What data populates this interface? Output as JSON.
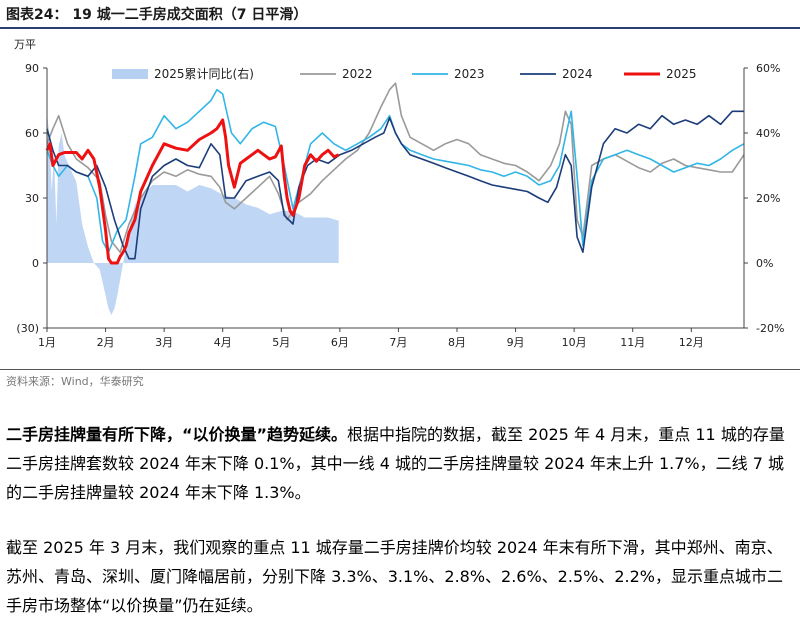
{
  "figure": {
    "title": "图表24：  19 城一二手房成交面积（7 日平滑）",
    "source": "资料来源：Wind，华泰研究"
  },
  "chart_data": {
    "type": "line",
    "y_unit": "万平",
    "ylim": [
      -30,
      90
    ],
    "yticks": [
      "90",
      "60",
      "30",
      "0",
      "(30)"
    ],
    "y2lim": [
      -20,
      60
    ],
    "y2ticks": [
      "60%",
      "40%",
      "20%",
      "0%",
      "-20%"
    ],
    "months": [
      "1月",
      "2月",
      "3月",
      "4月",
      "5月",
      "6月",
      "7月",
      "8月",
      "9月",
      "10月",
      "11月",
      "12月"
    ],
    "grid": false,
    "legend_position": "top",
    "series": [
      {
        "name": "2025累计同比(右)",
        "type": "area",
        "axis": "right",
        "color": "#a9c8f0",
        "x": [
          1.0,
          1.04,
          1.08,
          1.12,
          1.16,
          1.2,
          1.25,
          1.3,
          1.4,
          1.5,
          1.6,
          1.7,
          1.8,
          1.9,
          2.0,
          2.05,
          2.1,
          2.15,
          2.2,
          2.25,
          2.3,
          2.4,
          2.5,
          2.6,
          2.7,
          2.8,
          3.0,
          3.2,
          3.4,
          3.6,
          3.8,
          4.0,
          4.2,
          4.4,
          4.6,
          4.8,
          5.0,
          5.2,
          5.4,
          5.6,
          5.8,
          5.98
        ],
        "values": [
          46,
          40,
          22,
          33,
          12,
          36,
          40,
          33,
          29,
          25,
          12,
          5,
          0,
          -2,
          -10,
          -14,
          -16,
          -14,
          -10,
          -5,
          0,
          10,
          18,
          20,
          22,
          24,
          24,
          24,
          22,
          24,
          23,
          21,
          20,
          18,
          17,
          15,
          16,
          16,
          14,
          14,
          14,
          13
        ]
      },
      {
        "name": "2022",
        "color": "#9a9a9a",
        "x": [
          1.0,
          1.1,
          1.2,
          1.35,
          1.5,
          1.7,
          1.9,
          2.0,
          2.1,
          2.25,
          2.4,
          2.6,
          2.8,
          3.0,
          3.2,
          3.4,
          3.6,
          3.8,
          3.95,
          4.05,
          4.2,
          4.4,
          4.6,
          4.8,
          4.95,
          5.1,
          5.3,
          5.5,
          5.7,
          5.9,
          6.1,
          6.3,
          6.5,
          6.7,
          6.85,
          6.95,
          7.05,
          7.2,
          7.4,
          7.6,
          7.8,
          8.0,
          8.2,
          8.4,
          8.6,
          8.8,
          9.0,
          9.2,
          9.4,
          9.6,
          9.75,
          9.85,
          9.95,
          10.05,
          10.15,
          10.3,
          10.5,
          10.7,
          10.9,
          11.1,
          11.3,
          11.5,
          11.7,
          11.9,
          12.1,
          12.3,
          12.5,
          12.7,
          12.9
        ],
        "values": [
          55,
          62,
          68,
          55,
          48,
          44,
          38,
          22,
          10,
          5,
          18,
          30,
          38,
          42,
          40,
          43,
          41,
          40,
          35,
          28,
          25,
          30,
          35,
          40,
          32,
          20,
          28,
          32,
          38,
          43,
          48,
          52,
          60,
          72,
          80,
          83,
          68,
          58,
          55,
          52,
          55,
          57,
          55,
          50,
          48,
          46,
          45,
          42,
          38,
          45,
          55,
          70,
          64,
          20,
          12,
          45,
          48,
          50,
          47,
          44,
          42,
          46,
          48,
          45,
          44,
          43,
          42,
          42,
          50
        ]
      },
      {
        "name": "2023",
        "color": "#32b5e8",
        "x": [
          1.0,
          1.1,
          1.2,
          1.35,
          1.5,
          1.7,
          1.85,
          1.95,
          2.05,
          2.2,
          2.35,
          2.5,
          2.6,
          2.8,
          3.0,
          3.2,
          3.4,
          3.6,
          3.8,
          3.9,
          4.0,
          4.05,
          4.15,
          4.3,
          4.5,
          4.7,
          4.9,
          5.05,
          5.2,
          5.35,
          5.5,
          5.7,
          5.9,
          6.1,
          6.3,
          6.5,
          6.7,
          6.85,
          6.95,
          7.05,
          7.2,
          7.4,
          7.6,
          7.8,
          8.0,
          8.2,
          8.4,
          8.6,
          8.8,
          9.0,
          9.2,
          9.4,
          9.6,
          9.75,
          9.85,
          9.95,
          10.05,
          10.15,
          10.3,
          10.5,
          10.7,
          10.9,
          11.1,
          11.3,
          11.5,
          11.7,
          11.9,
          12.1,
          12.3,
          12.5,
          12.7,
          12.9
        ],
        "values": [
          52,
          45,
          40,
          45,
          42,
          40,
          30,
          10,
          5,
          15,
          20,
          40,
          55,
          58,
          68,
          62,
          65,
          70,
          75,
          80,
          78,
          72,
          60,
          55,
          62,
          65,
          63,
          45,
          25,
          40,
          55,
          60,
          55,
          52,
          55,
          58,
          62,
          68,
          60,
          55,
          52,
          50,
          48,
          47,
          46,
          45,
          43,
          42,
          40,
          42,
          40,
          36,
          38,
          45,
          58,
          70,
          40,
          8,
          38,
          48,
          50,
          52,
          50,
          48,
          45,
          42,
          44,
          46,
          45,
          48,
          52,
          55
        ]
      },
      {
        "name": "2024",
        "color": "#1c3d7a",
        "x": [
          1.0,
          1.1,
          1.2,
          1.35,
          1.5,
          1.7,
          1.85,
          2.0,
          2.15,
          2.3,
          2.4,
          2.5,
          2.6,
          2.8,
          3.0,
          3.2,
          3.4,
          3.6,
          3.8,
          3.95,
          4.05,
          4.2,
          4.4,
          4.6,
          4.8,
          4.95,
          5.05,
          5.2,
          5.3,
          5.45,
          5.6,
          5.8,
          6.0,
          6.2,
          6.4,
          6.6,
          6.75,
          6.85,
          6.95,
          7.05,
          7.2,
          7.4,
          7.6,
          7.8,
          8.0,
          8.2,
          8.4,
          8.6,
          8.8,
          9.0,
          9.2,
          9.4,
          9.55,
          9.7,
          9.85,
          9.95,
          10.05,
          10.15,
          10.3,
          10.5,
          10.7,
          10.9,
          11.1,
          11.3,
          11.5,
          11.7,
          11.9,
          12.1,
          12.3,
          12.5,
          12.7,
          12.9
        ],
        "values": [
          62,
          52,
          45,
          45,
          42,
          40,
          45,
          35,
          20,
          8,
          2,
          2,
          25,
          40,
          45,
          48,
          45,
          44,
          55,
          50,
          30,
          30,
          38,
          40,
          42,
          38,
          22,
          18,
          35,
          45,
          48,
          46,
          50,
          52,
          55,
          58,
          60,
          67,
          60,
          55,
          50,
          48,
          46,
          44,
          42,
          40,
          38,
          36,
          35,
          34,
          33,
          30,
          28,
          35,
          50,
          45,
          12,
          5,
          35,
          55,
          62,
          60,
          64,
          62,
          68,
          64,
          66,
          64,
          68,
          64,
          70,
          70
        ]
      },
      {
        "name": "2025",
        "color": "#ee1111",
        "x": [
          1.0,
          1.05,
          1.1,
          1.2,
          1.3,
          1.4,
          1.5,
          1.6,
          1.7,
          1.8,
          1.9,
          2.0,
          2.05,
          2.1,
          2.15,
          2.2,
          2.25,
          2.3,
          2.35,
          2.4,
          2.5,
          2.6,
          2.8,
          3.0,
          3.2,
          3.4,
          3.6,
          3.8,
          3.9,
          4.0,
          4.05,
          4.1,
          4.2,
          4.3,
          4.4,
          4.5,
          4.6,
          4.7,
          4.8,
          4.9,
          5.0,
          5.05,
          5.1,
          5.15,
          5.2,
          5.3,
          5.4,
          5.5,
          5.6,
          5.7,
          5.8,
          5.9,
          5.98
        ],
        "values": [
          52,
          55,
          45,
          50,
          51,
          51,
          51,
          48,
          52,
          48,
          35,
          15,
          2,
          0,
          0,
          0,
          3,
          5,
          8,
          14,
          20,
          33,
          45,
          55,
          53,
          52,
          57,
          60,
          62,
          66,
          58,
          45,
          35,
          46,
          48,
          50,
          52,
          50,
          48,
          49,
          54,
          40,
          30,
          24,
          22,
          30,
          45,
          50,
          47,
          50,
          52,
          49,
          50
        ]
      }
    ]
  },
  "paragraphs": {
    "p1_bold": "二手房挂牌量有所下降，“以价换量”趋势延续。",
    "p1_text": "根据中指院的数据，截至 2025 年 4 月末，重点 11 城的存量二手房挂牌套数较 2024 年末下降 0.1%，其中一线 4 城的二手房挂牌量较 2024 年末上升 1.7%，二线 7 城的二手房挂牌量较 2024 年末下降 1.3%。",
    "p2_text": "截至 2025 年 3 月末，我们观察的重点 11 城存量二手房挂牌价均较 2024 年末有所下滑，其中郑州、南京、苏州、青岛、深圳、厦门降幅居前，分别下降 3.3%、3.1%、2.8%、2.6%、2.5%、2.2%，显示重点城市二手房市场整体“以价换量”仍在延续。"
  }
}
